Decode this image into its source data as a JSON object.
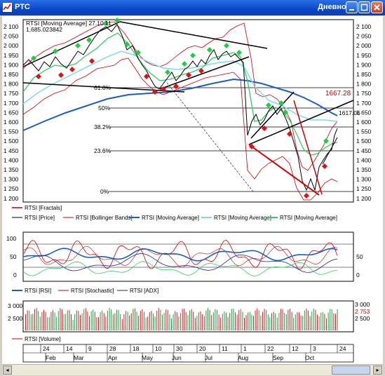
{
  "window": {
    "title": "РТС",
    "period": "Дневной"
  },
  "chart_info": {
    "line1": "RTSI [Moving Average] 27.10.11",
    "line2": "1,685.023842"
  },
  "price_axis": {
    "ticks": [
      "2 100",
      "2 050",
      "2 000",
      "1 950",
      "1 900",
      "1 850",
      "1 800",
      "1 750",
      "1 700",
      "1 650",
      "1 600",
      "1 550",
      "1 500",
      "1 450",
      "1 400",
      "1 350",
      "1 300",
      "1 250",
      "1 200"
    ],
    "label_1667": "1667.28",
    "label_1617": "1617.06"
  },
  "fib_labels": [
    "61.8%",
    "50%",
    "38.2%",
    "23.6%",
    "0%"
  ],
  "legends_main": {
    "fractals": "RTSI [Fractals]",
    "price": "RTSI [Price]",
    "bollinger": "RTSI [Bollinger Bands]",
    "ma1": "RTSI [Moving Average]",
    "ma2": "RTSI [Moving Average]",
    "ma3": "RTSI [Moving Average]"
  },
  "osc_axis": {
    "left": [
      "100",
      "50",
      "0"
    ],
    "right": [
      "50",
      "0"
    ]
  },
  "legends_osc": {
    "rsi": "RTSI [RSI]",
    "stochastic": "RTSI [Stochastic]",
    "adx": "RTSI [ADX]"
  },
  "vol_axis": {
    "left": [
      "3 000",
      "2 500"
    ],
    "right": [
      "3 000",
      "2 753",
      "2 500"
    ]
  },
  "legends_vol": {
    "volume": "RTSI [Volume]"
  },
  "date_axis": {
    "days": [
      "24",
      "14",
      "9",
      "28",
      "18",
      "10",
      "30",
      "20",
      "11",
      "1",
      "22",
      "12",
      "3",
      "24"
    ],
    "months": [
      "Feb",
      "Mar",
      "Apr",
      "May",
      "Jun",
      "Jul",
      "Aug",
      "Sep",
      "Oct"
    ]
  },
  "colors": {
    "price": "#000000",
    "bollinger": "#cc0000",
    "ma_blue": "#1a5fbf",
    "ma_cyan": "#7fd8f0",
    "ma_green": "#33cc66",
    "fractal_up": "#22cc44",
    "fractal_down": "#dd1111",
    "volume_red": "#d42020",
    "volume_green": "#20a040"
  }
}
